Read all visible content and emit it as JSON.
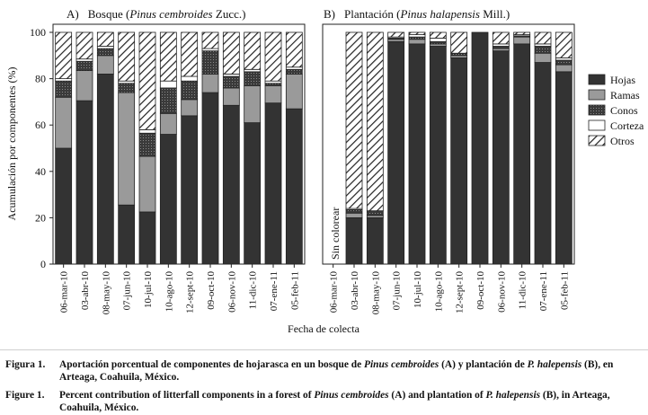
{
  "shared": {
    "ylabel": "Acumulación por componentes (%)",
    "xlabel": "Fecha de colecta",
    "yticks": [
      "0",
      "20",
      "40",
      "60",
      "80",
      "100"
    ],
    "categories": [
      "06-mar-10",
      "03-abr-10",
      "08-may-10",
      "07-jun-10",
      "10-jul-10",
      "10-ago-10",
      "12-sept-10",
      "09-oct-10",
      "06-nov-10",
      "11-dic-10",
      "07-ene-11",
      "05-feb-11"
    ],
    "legend": [
      "Hojas",
      "Ramas",
      "Conos",
      "Corteza",
      "Otros"
    ]
  },
  "panel_a": {
    "tag": "A)",
    "title_pre": "Bosque (",
    "title_species": "Pinus cembroides",
    "title_post": " Zucc.)"
  },
  "panel_b": {
    "tag": "B)",
    "title_pre": "Plantación (",
    "title_species": "Pinus halapensis",
    "title_post": " Mill.)",
    "note": "Sin colorear"
  },
  "colors": {
    "hojas": "#333333",
    "ramas": "#9a9a9a",
    "conos": "#3a3a3a",
    "corteza": "#ffffff",
    "otros": "hatch"
  },
  "chart_data": [
    {
      "type": "bar",
      "stacked": true,
      "title": "A) Bosque (Pinus cembroides Zucc.)",
      "xlabel": "Fecha de colecta",
      "ylabel": "Acumulación por componentes (%)",
      "ylim": [
        0,
        100
      ],
      "categories": [
        "06-mar-10",
        "03-abr-10",
        "08-may-10",
        "07-jun-10",
        "10-jul-10",
        "10-ago-10",
        "12-sept-10",
        "09-oct-10",
        "06-nov-10",
        "11-dic-10",
        "07-ene-11",
        "05-feb-11"
      ],
      "series": [
        {
          "name": "Hojas",
          "values": [
            50,
            70.5,
            82,
            25.5,
            22.5,
            56,
            64,
            74,
            68.5,
            61,
            69.5,
            67
          ]
        },
        {
          "name": "Ramas",
          "values": [
            22,
            13,
            8,
            48.5,
            24,
            9,
            7,
            8,
            7.5,
            16,
            7.5,
            15
          ]
        },
        {
          "name": "Conos",
          "values": [
            7,
            4,
            3,
            4,
            10,
            11,
            8,
            10,
            5,
            6,
            1,
            2
          ]
        },
        {
          "name": "Corteza",
          "values": [
            1,
            1,
            1,
            1,
            1.5,
            3,
            2,
            1,
            1,
            1,
            1,
            1
          ]
        },
        {
          "name": "Otros",
          "values": [
            20,
            11.5,
            6,
            21,
            42,
            21,
            19,
            7,
            18,
            16,
            21,
            15
          ]
        }
      ],
      "legend": "right"
    },
    {
      "type": "bar",
      "stacked": true,
      "title": "B) Plantación (Pinus halapensis Mill.)",
      "xlabel": "Fecha de colecta",
      "ylim": [
        0,
        100
      ],
      "categories": [
        "06-mar-10",
        "03-abr-10",
        "08-may-10",
        "07-jun-10",
        "10-jul-10",
        "10-ago-10",
        "12-sept-10",
        "09-oct-10",
        "06-nov-10",
        "11-dic-10",
        "07-ene-11",
        "05-feb-11"
      ],
      "series": [
        {
          "name": "Hojas",
          "values": [
            0,
            20,
            20,
            96,
            95,
            94,
            89,
            100,
            92,
            95,
            87,
            83
          ]
        },
        {
          "name": "Ramas",
          "values": [
            0,
            2,
            1,
            1,
            2,
            1,
            1,
            0,
            1,
            3,
            4,
            3
          ]
        },
        {
          "name": "Conos",
          "values": [
            0,
            1.5,
            2,
            0.5,
            1,
            1,
            1,
            0,
            1,
            0.5,
            3,
            2
          ]
        },
        {
          "name": "Corteza",
          "values": [
            0,
            0.5,
            0,
            0.5,
            1,
            1.5,
            0,
            0,
            1,
            0.5,
            1,
            1
          ]
        },
        {
          "name": "Otros",
          "values": [
            0,
            76,
            77,
            2,
            1,
            2.5,
            9,
            0,
            5,
            1,
            5,
            11
          ]
        }
      ],
      "note": "Sin colorear"
    }
  ],
  "caption_es": {
    "head": "Figura 1.",
    "t1": "Aportación porcentual de componentes de hojarasca en un bosque de ",
    "i1": "Pinus cembroides",
    "t2": " (A) y plantación de ",
    "i2": "P. halepensis",
    "t3": " (B), en Arteaga, Coahuila, México."
  },
  "caption_en": {
    "head": "Figure 1.",
    "t1": "Percent contribution of litterfall components in a forest of ",
    "i1": "Pinus cembroides",
    "t2": " (A) and plantation of ",
    "i2": "P. halepensis",
    "t3": " (B), in Arteaga, Coahuila, México."
  }
}
